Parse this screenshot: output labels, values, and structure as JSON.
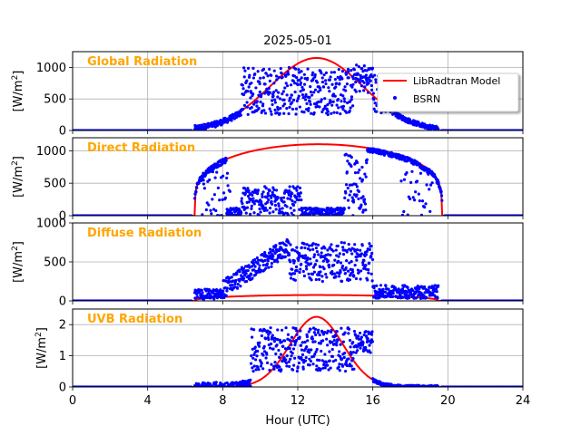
{
  "colors": {
    "model": "#ff0000",
    "bsrn": "#0000ff",
    "panel_title": "#ffa500",
    "grid": "#b0b0b0"
  },
  "chart_data": {
    "type": "line",
    "title": "2025-05-01",
    "xlabel": "Hour (UTC)",
    "xlim": [
      0,
      24
    ],
    "xticks": [
      0,
      4,
      8,
      12,
      16,
      20,
      24
    ],
    "legend": {
      "placement": "top-right of first panel",
      "entries": [
        {
          "name": "LibRadtran Model",
          "style": "line"
        },
        {
          "name": "BSRN",
          "style": "points"
        }
      ]
    },
    "panels": [
      {
        "key": "global",
        "title": "Global Radiation",
        "ylabel": "[W/m²]",
        "ylabel_main": "[W/m",
        "ylabel_sup": "2",
        "ylabel_end": "]",
        "ylim": [
          0,
          1250
        ],
        "yticks": [
          0,
          500,
          1000
        ],
        "ytick_labels": [
          "0",
          "500",
          "1000"
        ],
        "model": {
          "start": 6.5,
          "end": 19.5,
          "peak_hour": 13.0,
          "peak": 1150,
          "width": 3.35
        },
        "bsrn_segments": [
          {
            "from": 6.5,
            "to": 9.0,
            "mode": "model_scaled",
            "scale": 0.92,
            "jitter": 45
          },
          {
            "from": 9.0,
            "to": 15.0,
            "mode": "band",
            "lo": 250,
            "hi": 1000
          },
          {
            "from": 15.0,
            "to": 16.0,
            "mode": "band",
            "lo": 600,
            "hi": 1050
          },
          {
            "from": 16.0,
            "to": 17.2,
            "mode": "band",
            "lo": 250,
            "hi": 900
          },
          {
            "from": 17.2,
            "to": 19.5,
            "mode": "model_scaled",
            "scale": 0.95,
            "jitter": 35
          }
        ]
      },
      {
        "key": "direct",
        "title": "Direct Radiation",
        "ylabel": "[W/m²]",
        "ylabel_main": "[W/m",
        "ylabel_sup": "2",
        "ylabel_end": "]",
        "ylim": [
          0,
          1200
        ],
        "yticks": [
          0,
          500,
          1000
        ],
        "ytick_labels": [
          "0",
          "500",
          "1000"
        ],
        "model": {
          "start": 6.5,
          "end": 19.7,
          "peak_hour": 13.0,
          "peak": 1100,
          "width": 0,
          "shape": "plateau"
        },
        "bsrn_segments": [
          {
            "from": 6.5,
            "to": 8.2,
            "mode": "model_scaled",
            "scale": 0.98,
            "jitter": 40
          },
          {
            "from": 6.9,
            "to": 8.4,
            "mode": "band",
            "lo": 0,
            "hi": 700,
            "count": 35
          },
          {
            "from": 8.2,
            "to": 9.0,
            "mode": "band",
            "lo": 0,
            "hi": 120
          },
          {
            "from": 9.0,
            "to": 12.2,
            "mode": "band",
            "lo": 0,
            "hi": 450
          },
          {
            "from": 12.2,
            "to": 14.5,
            "mode": "band",
            "lo": 0,
            "hi": 120
          },
          {
            "from": 14.5,
            "to": 15.7,
            "mode": "band",
            "lo": 0,
            "hi": 950
          },
          {
            "from": 15.7,
            "to": 19.7,
            "mode": "model_scaled",
            "scale": 0.97,
            "jitter": 35
          },
          {
            "from": 17.5,
            "to": 19.2,
            "mode": "band",
            "lo": 0,
            "hi": 700,
            "count": 30
          }
        ]
      },
      {
        "key": "diffuse",
        "title": "Diffuse Radiation",
        "ylabel": "[W/m²]",
        "ylabel_main": "[W/m",
        "ylabel_sup": "2",
        "ylabel_end": "]",
        "ylim": [
          0,
          1000
        ],
        "yticks": [
          0,
          500,
          1000
        ],
        "ytick_labels": [
          "0",
          "500",
          "1000"
        ],
        "model": {
          "start": 6.5,
          "end": 19.5,
          "peak_hour": 13.0,
          "peak": 75,
          "width": 0,
          "shape": "flat"
        },
        "bsrn_segments": [
          {
            "from": 6.5,
            "to": 8.0,
            "mode": "band",
            "lo": 20,
            "hi": 150
          },
          {
            "from": 8.0,
            "to": 11.5,
            "mode": "ramp",
            "lo": 150,
            "hi": 700,
            "jitter": 120
          },
          {
            "from": 11.5,
            "to": 16.0,
            "mode": "band",
            "lo": 250,
            "hi": 750
          },
          {
            "from": 16.0,
            "to": 19.5,
            "mode": "band",
            "lo": 30,
            "hi": 200
          }
        ]
      },
      {
        "key": "uvb",
        "title": "UVB Radiation",
        "ylabel": "[W/m²]",
        "ylabel_main": "[W/m",
        "ylabel_sup": "2",
        "ylabel_end": "]",
        "ylim": [
          0,
          2.5
        ],
        "yticks": [
          0,
          1,
          2
        ],
        "ytick_labels": [
          "0",
          "1",
          "2"
        ],
        "model": {
          "start": 6.5,
          "end": 19.5,
          "peak_hour": 13.0,
          "peak": 2.25,
          "width": 1.9
        },
        "bsrn_segments": [
          {
            "from": 6.5,
            "to": 9.5,
            "mode": "model_scaled",
            "scale": 0.85,
            "jitter": 0.15
          },
          {
            "from": 9.5,
            "to": 15.0,
            "mode": "band",
            "lo": 0.5,
            "hi": 1.9
          },
          {
            "from": 15.0,
            "to": 16.0,
            "mode": "band",
            "lo": 1.1,
            "hi": 1.8
          },
          {
            "from": 16.0,
            "to": 19.5,
            "mode": "model_scaled",
            "scale": 0.95,
            "jitter": 0.05
          }
        ]
      }
    ]
  }
}
